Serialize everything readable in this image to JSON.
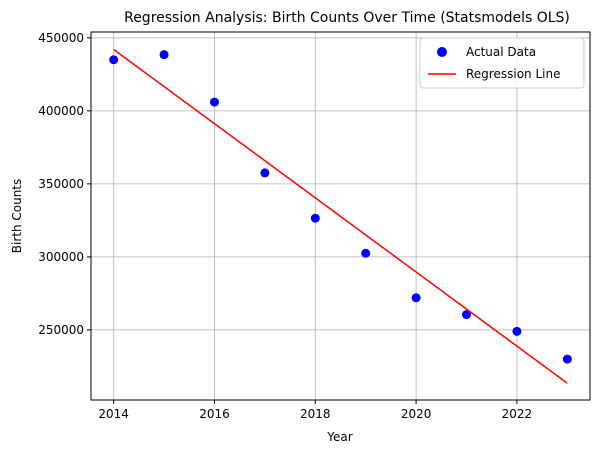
{
  "chart_data": {
    "type": "scatter",
    "title": "Regression Analysis: Birth Counts Over Time (Statsmodels OLS)",
    "xlabel": "Year",
    "ylabel": "Birth Counts",
    "xlim": [
      2013.55,
      2023.45
    ],
    "ylim": [
      202000,
      454000
    ],
    "xticks": [
      2014,
      2016,
      2018,
      2020,
      2022
    ],
    "yticks": [
      250000,
      300000,
      350000,
      400000,
      450000
    ],
    "grid": true,
    "legend_position": "top-right",
    "series": [
      {
        "name": "Actual Data",
        "type": "scatter",
        "color": "#0000ff",
        "x": [
          2014,
          2015,
          2016,
          2017,
          2018,
          2019,
          2020,
          2021,
          2022,
          2023
        ],
        "y": [
          435000,
          438500,
          406000,
          357500,
          326500,
          302500,
          272000,
          260500,
          249000,
          230000
        ]
      },
      {
        "name": "Regression Line",
        "type": "line",
        "color": "#ff0000",
        "x": [
          2014,
          2023
        ],
        "y": [
          442000,
          213500
        ]
      }
    ]
  }
}
